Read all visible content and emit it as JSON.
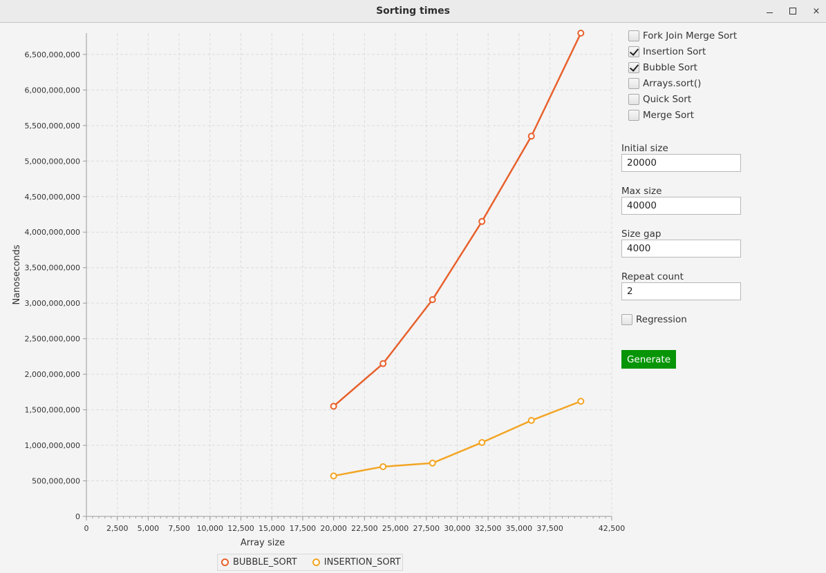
{
  "window": {
    "title": "Sorting times",
    "minimize_label": "–",
    "maximize_label": "□",
    "close_label": "×"
  },
  "options": {
    "algorithms": [
      {
        "label": "Fork Join Merge Sort",
        "checked": false
      },
      {
        "label": "Insertion Sort",
        "checked": true
      },
      {
        "label": "Bubble Sort",
        "checked": true
      },
      {
        "label": "Arrays.sort()",
        "checked": false
      },
      {
        "label": "Quick Sort",
        "checked": false
      },
      {
        "label": "Merge Sort",
        "checked": false
      }
    ],
    "initial_size": {
      "label": "Initial size",
      "value": "20000"
    },
    "max_size": {
      "label": "Max size",
      "value": "40000"
    },
    "size_gap": {
      "label": "Size gap",
      "value": "4000"
    },
    "repeat_count": {
      "label": "Repeat count",
      "value": "2"
    },
    "regression": {
      "label": "Regression",
      "checked": false
    },
    "generate_label": "Generate"
  },
  "legend": {
    "items": [
      {
        "name": "BUBBLE_SORT",
        "color": "#e8602c"
      },
      {
        "name": "INSERTION_SORT",
        "color": "#f3a524"
      }
    ]
  },
  "chart_data": {
    "type": "line",
    "xlabel": "Array size",
    "ylabel": "Nanoseconds",
    "xlim": [
      0,
      42500
    ],
    "ylim": [
      0,
      6800000000
    ],
    "x_ticks": [
      0,
      2500,
      5000,
      7500,
      10000,
      12500,
      15000,
      17500,
      20000,
      22500,
      25000,
      27500,
      30000,
      32500,
      35000,
      37500,
      42500
    ],
    "x_tick_labels": [
      "0",
      "2,500",
      "5,000",
      "7,500",
      "10,000",
      "12,500",
      "15,000",
      "17,500",
      "20,000",
      "22,500",
      "25,000",
      "27,500",
      "30,000",
      "32,500",
      "35,000",
      "37,500",
      "42,500"
    ],
    "y_ticks": [
      0,
      500000000,
      1000000000,
      1500000000,
      2000000000,
      2500000000,
      3000000000,
      3500000000,
      4000000000,
      4500000000,
      5000000000,
      5500000000,
      6000000000,
      6500000000
    ],
    "y_tick_labels": [
      "0",
      "500,000,000",
      "1,000,000,000",
      "1,500,000,000",
      "2,000,000,000",
      "2,500,000,000",
      "3,000,000,000",
      "3,500,000,000",
      "4,000,000,000",
      "4,500,000,000",
      "5,000,000,000",
      "5,500,000,000",
      "6,000,000,000",
      "6,500,000,000"
    ],
    "grid": true,
    "legend_position": "bottom",
    "series": [
      {
        "name": "BUBBLE_SORT",
        "color": "#e8602c",
        "x": [
          20000,
          24000,
          28000,
          32000,
          36000,
          40000
        ],
        "y": [
          1550000000,
          2150000000,
          3050000000,
          4150000000,
          5350000000,
          6800000000
        ]
      },
      {
        "name": "INSERTION_SORT",
        "color": "#f3a524",
        "x": [
          20000,
          24000,
          28000,
          32000,
          36000,
          40000
        ],
        "y": [
          570000000,
          700000000,
          750000000,
          1040000000,
          1350000000,
          1620000000
        ]
      }
    ]
  }
}
